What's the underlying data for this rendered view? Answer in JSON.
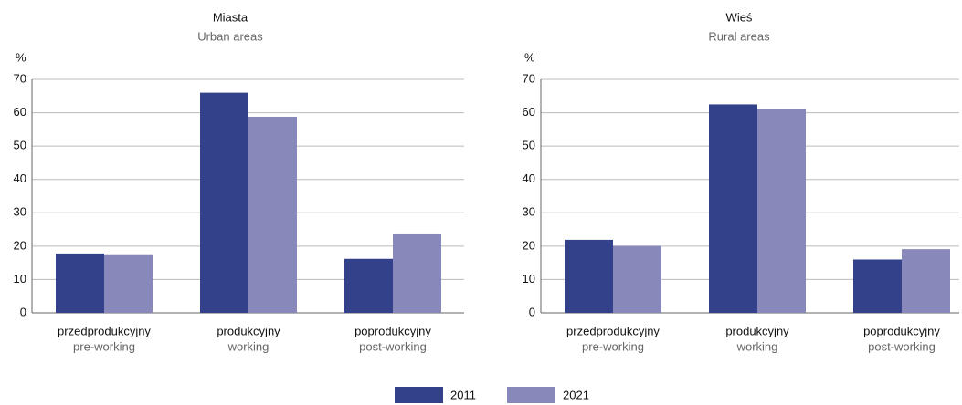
{
  "chart_data": [
    {
      "type": "bar",
      "title": "Miasta",
      "subtitle": "Urban areas",
      "ylabel": "%",
      "categories": [
        "przedprodukcyjny",
        "produkcyjny",
        "poprodukcyjny"
      ],
      "category_subtitles": [
        "pre-working",
        "working",
        "post-working"
      ],
      "series": [
        {
          "name": "2011",
          "color": "#33418a",
          "values": [
            17.8,
            66,
            16.2
          ]
        },
        {
          "name": "2021",
          "color": "#8888bb",
          "values": [
            17.3,
            58.8,
            23.8
          ]
        }
      ],
      "ylim": [
        0,
        70
      ],
      "yticks": [
        0,
        10,
        20,
        30,
        40,
        50,
        60,
        70
      ],
      "grid": true
    },
    {
      "type": "bar",
      "title": "Wieś",
      "subtitle": "Rural areas",
      "ylabel": "%",
      "categories": [
        "przedprodukcyjny",
        "produkcyjny",
        "poprodukcyjny"
      ],
      "category_subtitles": [
        "pre-working",
        "working",
        "post-working"
      ],
      "series": [
        {
          "color": "#33418a",
          "values": [
            21.9,
            62.5,
            16
          ]
        },
        {
          "color": "#8888bb",
          "values": [
            20.1,
            61,
            19.1
          ]
        }
      ],
      "ylim": [
        0,
        70
      ],
      "yticks": [
        0,
        10,
        20,
        30,
        40,
        50,
        60,
        70
      ],
      "grid": true
    }
  ]
}
